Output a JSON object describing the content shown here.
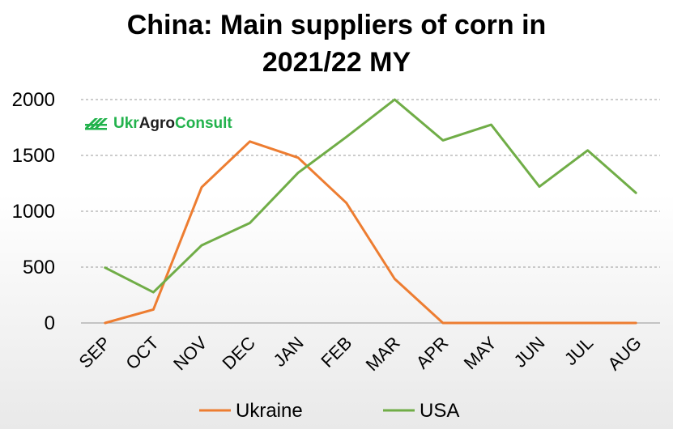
{
  "logo": {
    "part1": "Ukr",
    "part2": "Agro",
    "part3": "Consult",
    "color_green": "#22b24c",
    "color_dark": "#1f1f1f"
  },
  "chart_data": {
    "type": "line",
    "title_line1": "China: Main suppliers of corn in",
    "title_line2": "2021/22 MY",
    "xlabel": "",
    "ylabel": "",
    "categories": [
      "SEP",
      "OCT",
      "NOV",
      "DEC",
      "JAN",
      "FEB",
      "MAR",
      "APR",
      "MAY",
      "JUN",
      "JUL",
      "AUG"
    ],
    "ylim": [
      0,
      2000
    ],
    "yticks": [
      "0",
      "500",
      "1000",
      "1500",
      "2000"
    ],
    "grid": true,
    "legend_position": "bottom",
    "series": [
      {
        "name": "Ukraine",
        "color": "#ed7d31",
        "values": [
          0,
          120,
          1215,
          1625,
          1480,
          1075,
          395,
          0,
          0,
          0,
          0,
          0
        ]
      },
      {
        "name": "USA",
        "color": "#70ad47",
        "values": [
          495,
          275,
          695,
          895,
          1345,
          1665,
          2000,
          1635,
          1775,
          1220,
          1545,
          1165
        ]
      }
    ]
  }
}
